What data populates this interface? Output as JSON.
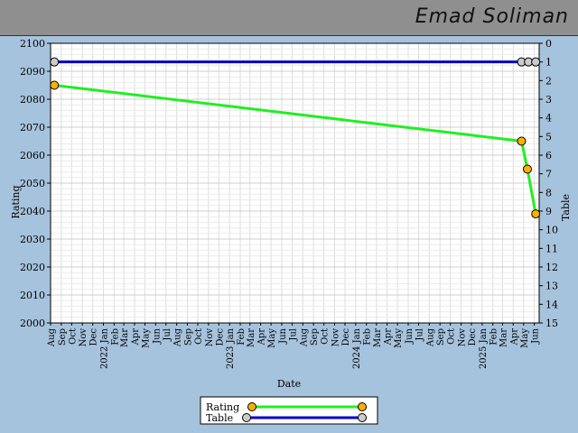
{
  "header": {
    "title": "Emad Soliman"
  },
  "chart_data": {
    "type": "line",
    "xlabel": "Date",
    "ylabel_left": "Rating",
    "ylabel_right": "Table",
    "x_range": [
      "2021-08-01",
      "2025-06-15"
    ],
    "ylim_left": [
      2000,
      2100
    ],
    "ylim_right": [
      0,
      15
    ],
    "right_axis_inverted": true,
    "grid": true,
    "legend_placement": "bottom-center",
    "x_tick_labels": [
      {
        "date": "2021-08-01",
        "label": "Aug"
      },
      {
        "date": "2021-09-01",
        "label": "Sep"
      },
      {
        "date": "2021-10-01",
        "label": "Oct"
      },
      {
        "date": "2021-11-01",
        "label": "Nov"
      },
      {
        "date": "2021-12-01",
        "label": "Dec"
      },
      {
        "date": "2022-01-01",
        "label": "2022 Jan"
      },
      {
        "date": "2022-02-01",
        "label": "Feb"
      },
      {
        "date": "2022-03-01",
        "label": "Mar"
      },
      {
        "date": "2022-04-01",
        "label": "Apr"
      },
      {
        "date": "2022-05-01",
        "label": "May"
      },
      {
        "date": "2022-06-01",
        "label": "Jun"
      },
      {
        "date": "2022-07-01",
        "label": "Jul"
      },
      {
        "date": "2022-08-01",
        "label": "Aug"
      },
      {
        "date": "2022-09-01",
        "label": "Sep"
      },
      {
        "date": "2022-10-01",
        "label": "Oct"
      },
      {
        "date": "2022-11-01",
        "label": "Nov"
      },
      {
        "date": "2022-12-01",
        "label": "Dec"
      },
      {
        "date": "2023-01-01",
        "label": "2023 Jan"
      },
      {
        "date": "2023-02-01",
        "label": "Feb"
      },
      {
        "date": "2023-03-01",
        "label": "Mar"
      },
      {
        "date": "2023-04-01",
        "label": "Apr"
      },
      {
        "date": "2023-05-01",
        "label": "May"
      },
      {
        "date": "2023-06-01",
        "label": "Jun"
      },
      {
        "date": "2023-07-01",
        "label": "Jul"
      },
      {
        "date": "2023-08-01",
        "label": "Aug"
      },
      {
        "date": "2023-09-01",
        "label": "Sep"
      },
      {
        "date": "2023-10-01",
        "label": "Oct"
      },
      {
        "date": "2023-11-01",
        "label": "Nov"
      },
      {
        "date": "2023-12-01",
        "label": "Dec"
      },
      {
        "date": "2024-01-01",
        "label": "2024 Jan"
      },
      {
        "date": "2024-02-01",
        "label": "Feb"
      },
      {
        "date": "2024-03-01",
        "label": "Mar"
      },
      {
        "date": "2024-04-01",
        "label": "Apr"
      },
      {
        "date": "2024-05-01",
        "label": "May"
      },
      {
        "date": "2024-06-01",
        "label": "Jun"
      },
      {
        "date": "2024-07-01",
        "label": "Jul"
      },
      {
        "date": "2024-08-01",
        "label": "Aug"
      },
      {
        "date": "2024-09-01",
        "label": "Sep"
      },
      {
        "date": "2024-10-01",
        "label": "Oct"
      },
      {
        "date": "2024-11-01",
        "label": "Nov"
      },
      {
        "date": "2024-12-01",
        "label": "Dec"
      },
      {
        "date": "2025-01-01",
        "label": "2025 Jan"
      },
      {
        "date": "2025-02-01",
        "label": "Feb"
      },
      {
        "date": "2025-03-01",
        "label": "Mar"
      },
      {
        "date": "2025-04-01",
        "label": "Apr"
      },
      {
        "date": "2025-05-01",
        "label": "May"
      },
      {
        "date": "2025-06-01",
        "label": "Jun"
      }
    ],
    "left_ticks": [
      2000,
      2010,
      2020,
      2030,
      2040,
      2050,
      2060,
      2070,
      2080,
      2090,
      2100
    ],
    "right_ticks": [
      0,
      1,
      2,
      3,
      4,
      5,
      6,
      7,
      8,
      9,
      10,
      11,
      12,
      13,
      14,
      15
    ],
    "series": [
      {
        "name": "Rating",
        "axis": "left",
        "color": "#22ee22",
        "marker_color": "#ffb000",
        "points": [
          {
            "x": "2021-08-12",
            "y": 2085
          },
          {
            "x": "2025-04-25",
            "y": 2065
          },
          {
            "x": "2025-05-12",
            "y": 2055
          },
          {
            "x": "2025-06-05",
            "y": 2039
          }
        ]
      },
      {
        "name": "Table",
        "axis": "right",
        "color": "#0000cc",
        "marker_color": "#cccccc",
        "points": [
          {
            "x": "2021-08-12",
            "y": 1
          },
          {
            "x": "2025-04-25",
            "y": 1
          },
          {
            "x": "2025-05-15",
            "y": 1
          },
          {
            "x": "2025-06-05",
            "y": 1
          }
        ]
      }
    ]
  }
}
